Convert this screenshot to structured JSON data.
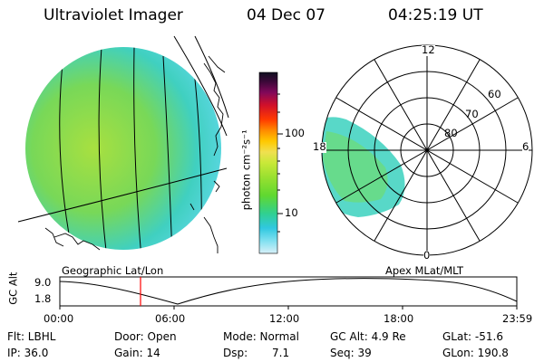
{
  "header": {
    "title": "Ultraviolet Imager",
    "date": "04 Dec 07",
    "time": "04:25:19 UT"
  },
  "colorbar": {
    "unit_label": "photon cm⁻²s⁻¹",
    "ticks": [
      "100",
      "10"
    ],
    "colors": [
      "#101020",
      "#3a0838",
      "#80085a",
      "#d0102a",
      "#ff3a00",
      "#ff8a00",
      "#ffc800",
      "#f0e050",
      "#c8e838",
      "#98e030",
      "#60d830",
      "#30d090",
      "#30c8e0",
      "#80e0f0",
      "#d8f0f8"
    ]
  },
  "polar_plot": {
    "mlt_labels": [
      "12",
      "18",
      "6",
      "0"
    ],
    "lat_labels": [
      "60",
      "70",
      "80"
    ]
  },
  "map_labels": {
    "left": "Geographic Lat/Lon",
    "right": "Apex MLat/MLT"
  },
  "timeline": {
    "axis_label": "GC Alt",
    "y_ticks": [
      "9.0",
      "1.8"
    ],
    "x_ticks": [
      "00:00",
      "06:00",
      "12:00",
      "18:00",
      "23:59"
    ],
    "marker_color": "#ff0000"
  },
  "status": {
    "flt": "Flt: LBHL",
    "ip": "IP: 36.0",
    "door": "Door: Open",
    "gain": "Gain: 14",
    "mode": "Mode: Normal",
    "dsp_label": "Dsp:",
    "dsp_value": "7.1",
    "gc_alt": "GC Alt: 4.9 Re",
    "seq": "Seq: 39",
    "glat": "GLat: -51.6",
    "glon": "GLon: 190.8"
  }
}
